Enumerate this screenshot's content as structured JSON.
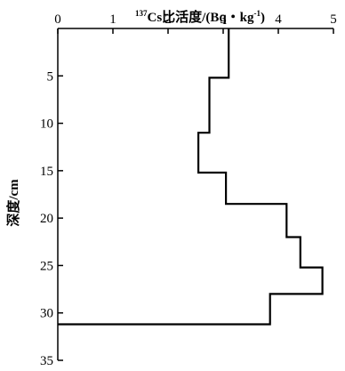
{
  "chart_data": {
    "type": "line",
    "subtype": "step-profile",
    "x_axis": {
      "position": "top",
      "label_prefix_sup": "137",
      "label_main": "Cs比活度/(Bq・kg",
      "label_sup": "-1",
      "label_close": ")",
      "range": [
        0,
        5
      ],
      "ticks": [
        0,
        1,
        2,
        3,
        4,
        5
      ],
      "tick_labels": [
        "0",
        "1",
        "2",
        "3",
        "4",
        "5"
      ]
    },
    "y_axis": {
      "position": "left",
      "label": "深度/cm",
      "inverted": true,
      "range": [
        0,
        35
      ],
      "ticks": [
        5,
        10,
        15,
        20,
        25,
        30,
        35
      ],
      "tick_labels": [
        "5",
        "10",
        "15",
        "20",
        "25",
        "30",
        "35"
      ]
    },
    "series": [
      {
        "layers": [
          {
            "depth_top": 0,
            "depth_bottom": 5.2,
            "value": 3.1
          },
          {
            "depth_top": 5.2,
            "depth_bottom": 11.0,
            "value": 2.75
          },
          {
            "depth_top": 11.0,
            "depth_bottom": 15.2,
            "value": 2.55
          },
          {
            "depth_top": 15.2,
            "depth_bottom": 18.5,
            "value": 3.05
          },
          {
            "depth_top": 18.5,
            "depth_bottom": 22.0,
            "value": 4.15
          },
          {
            "depth_top": 22.0,
            "depth_bottom": 25.2,
            "value": 4.4
          },
          {
            "depth_top": 25.2,
            "depth_bottom": 28.0,
            "value": 4.8
          },
          {
            "depth_top": 28.0,
            "depth_bottom": 31.2,
            "value": 3.85
          },
          {
            "depth_top": 31.2,
            "depth_bottom": 31.2,
            "value": 0
          }
        ]
      }
    ],
    "grid": false,
    "legend": "none"
  }
}
